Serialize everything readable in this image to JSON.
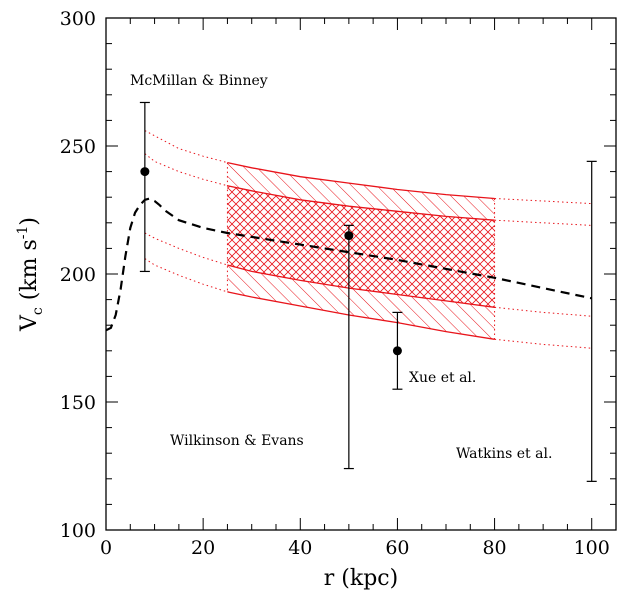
{
  "chart_data": {
    "type": "scatter",
    "title": "",
    "xlabel": "r (kpc)",
    "ylabel_main": "V",
    "ylabel_sub": "c",
    "ylabel_rest": " (km s",
    "ylabel_sup": "-1",
    "ylabel_close": ")",
    "xlim": [
      0,
      105
    ],
    "ylim": [
      100,
      300
    ],
    "x_ticks": [
      0,
      20,
      40,
      60,
      80,
      100
    ],
    "y_ticks": [
      100,
      150,
      200,
      250,
      300
    ],
    "grid": false,
    "colors": {
      "band": "#e8141b",
      "data": "#000000",
      "model": "#000000"
    },
    "points": [
      {
        "label": "McMillan & Binney",
        "x": 8,
        "y": 240,
        "y_low": 201,
        "y_high": 267
      },
      {
        "label": "Wilkinson & Evans",
        "x": 50,
        "y": 215,
        "y_low": 124,
        "y_high": 219
      },
      {
        "label": "Xue et al.",
        "x": 60,
        "y": 170,
        "y_low": 155,
        "y_high": 185
      },
      {
        "label": "Watkins et al.",
        "x": 100,
        "y": null,
        "y_low": 119,
        "y_high": 244
      }
    ],
    "model_curve": {
      "style": "dashed",
      "x": [
        0,
        1,
        2,
        3,
        4,
        5,
        6,
        7,
        8,
        9,
        10,
        11,
        12,
        15,
        20,
        25,
        30,
        40,
        50,
        60,
        70,
        80,
        90,
        100
      ],
      "y": [
        178,
        179,
        184,
        194,
        207,
        218,
        224,
        227,
        229,
        229.5,
        228.5,
        227,
        225,
        221,
        218,
        216,
        214.5,
        211.5,
        208.5,
        205.5,
        202,
        198.5,
        194.5,
        190.5
      ]
    },
    "band_curves": {
      "style": "dotted-outside-solid-inside",
      "range": [
        25,
        80
      ],
      "x": [
        8,
        10,
        15,
        20,
        25,
        30,
        40,
        50,
        60,
        70,
        80,
        90,
        100
      ],
      "outer_upper": [
        256,
        254,
        249,
        246,
        243.5,
        241.5,
        238,
        235.5,
        233,
        231,
        229.5,
        228.5,
        227.5
      ],
      "inner_upper": [
        247,
        244,
        240,
        237,
        234.5,
        232.5,
        229,
        226.5,
        224.5,
        222.5,
        221,
        220,
        219
      ],
      "inner_lower": [
        216,
        214,
        210,
        206.5,
        203.5,
        201,
        197.5,
        194.5,
        192,
        189.5,
        187,
        185,
        183.5
      ],
      "outer_lower": [
        206,
        203.5,
        199.5,
        196,
        193,
        191,
        187.5,
        184,
        181,
        177.5,
        174.5,
        172.5,
        171
      ]
    }
  }
}
